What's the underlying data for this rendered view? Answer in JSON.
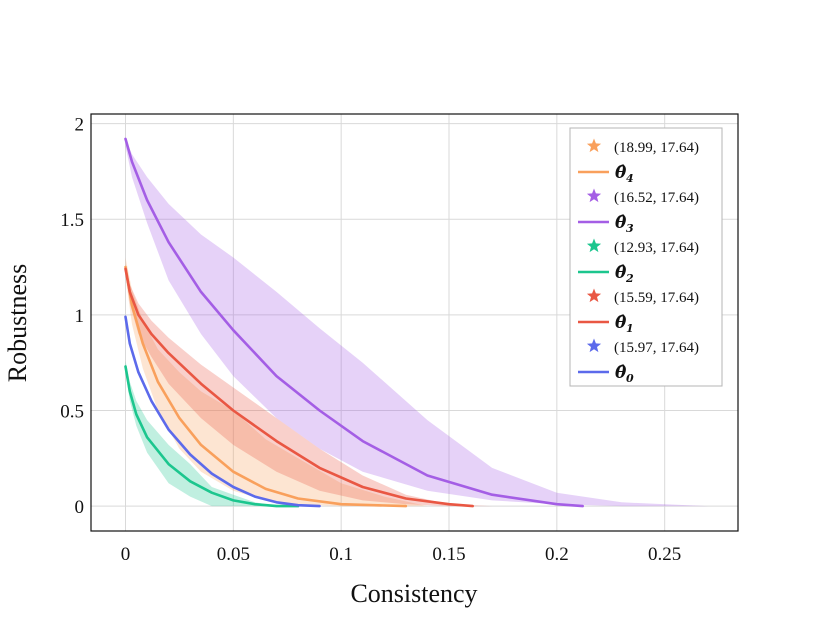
{
  "chart_data": {
    "type": "line",
    "title": "",
    "xlabel": "Consistency",
    "ylabel": "Robustness",
    "xlim": [
      -0.016,
      0.284
    ],
    "ylim": [
      -0.13,
      2.05
    ],
    "xticks": [
      0,
      0.05,
      0.1,
      0.15,
      0.2,
      0.25
    ],
    "xtick_labels": [
      "0",
      "0.05",
      "0.1",
      "0.15",
      "0.2",
      "0.25"
    ],
    "yticks": [
      0,
      0.5,
      1,
      1.5,
      2
    ],
    "ytick_labels": [
      "0",
      "0.5",
      "1",
      "1.5",
      "2"
    ],
    "grid": true,
    "legend_position": "top-right",
    "series": [
      {
        "name": "θ̂4",
        "sub": "4",
        "color": "#F9A05C",
        "star_label": "(18.99, 17.64)",
        "x": [
          0,
          0.003,
          0.008,
          0.015,
          0.025,
          0.035,
          0.05,
          0.065,
          0.08,
          0.1,
          0.13
        ],
        "y": [
          1.25,
          1.05,
          0.85,
          0.65,
          0.46,
          0.32,
          0.18,
          0.09,
          0.04,
          0.01,
          0.0
        ],
        "band_upper": [
          1.3,
          1.13,
          0.97,
          0.82,
          0.7,
          0.6,
          0.5,
          0.35,
          0.25,
          0.12,
          0.05,
          0.0
        ],
        "band_lower": [
          1.2,
          0.95,
          0.72,
          0.5,
          0.3,
          0.18,
          0.08,
          0.03,
          0.01,
          0.0,
          0.0,
          0.0
        ],
        "band_x": [
          0,
          0.003,
          0.008,
          0.015,
          0.025,
          0.035,
          0.05,
          0.065,
          0.08,
          0.1,
          0.12,
          0.14
        ]
      },
      {
        "name": "θ̂3",
        "sub": "3",
        "color": "#A45EE5",
        "star_label": "(16.52, 17.64)",
        "x": [
          0,
          0.003,
          0.01,
          0.02,
          0.035,
          0.05,
          0.07,
          0.09,
          0.11,
          0.14,
          0.17,
          0.2,
          0.212
        ],
        "y": [
          1.92,
          1.8,
          1.6,
          1.38,
          1.12,
          0.92,
          0.68,
          0.5,
          0.34,
          0.16,
          0.06,
          0.01,
          0.0
        ],
        "band_upper": [
          1.92,
          1.84,
          1.72,
          1.58,
          1.42,
          1.3,
          1.12,
          0.93,
          0.75,
          0.45,
          0.2,
          0.07,
          0.02,
          0.0
        ],
        "band_lower": [
          1.88,
          1.72,
          1.48,
          1.18,
          0.9,
          0.68,
          0.46,
          0.3,
          0.18,
          0.08,
          0.03,
          0.01,
          0.0,
          0.0
        ],
        "band_x": [
          0,
          0.003,
          0.01,
          0.02,
          0.035,
          0.05,
          0.07,
          0.09,
          0.11,
          0.14,
          0.17,
          0.2,
          0.23,
          0.27
        ]
      },
      {
        "name": "θ̂2",
        "sub": "2",
        "color": "#1CC68E",
        "star_label": "(12.93, 17.64)",
        "x": [
          0,
          0.002,
          0.005,
          0.01,
          0.02,
          0.03,
          0.04,
          0.05,
          0.06,
          0.07,
          0.08
        ],
        "y": [
          0.73,
          0.6,
          0.48,
          0.36,
          0.22,
          0.13,
          0.07,
          0.03,
          0.01,
          0.0,
          0.0
        ],
        "band_upper": [
          0.76,
          0.65,
          0.55,
          0.45,
          0.32,
          0.22,
          0.1,
          0.06,
          0.02,
          0.0,
          0.0
        ],
        "band_lower": [
          0.7,
          0.55,
          0.42,
          0.28,
          0.12,
          0.05,
          0.0,
          0.0,
          0.0,
          0.0,
          0.0
        ],
        "band_x": [
          0,
          0.002,
          0.005,
          0.01,
          0.02,
          0.03,
          0.04,
          0.05,
          0.06,
          0.07,
          0.08
        ]
      },
      {
        "name": "θ̂1",
        "sub": "1",
        "color": "#E95743",
        "star_label": "(15.59, 17.64)",
        "x": [
          0,
          0.002,
          0.006,
          0.012,
          0.02,
          0.035,
          0.05,
          0.07,
          0.09,
          0.11,
          0.13,
          0.15,
          0.161
        ],
        "y": [
          1.24,
          1.12,
          1.0,
          0.9,
          0.8,
          0.64,
          0.5,
          0.34,
          0.2,
          0.1,
          0.04,
          0.01,
          0.0
        ],
        "band_upper": [
          1.26,
          1.16,
          1.06,
          0.97,
          0.88,
          0.74,
          0.62,
          0.46,
          0.3,
          0.16,
          0.06,
          0.01,
          0.0
        ],
        "band_lower": [
          1.22,
          1.06,
          0.9,
          0.78,
          0.64,
          0.46,
          0.32,
          0.18,
          0.08,
          0.03,
          0.01,
          0.0,
          0.0
        ],
        "band_x": [
          0,
          0.002,
          0.006,
          0.012,
          0.02,
          0.035,
          0.05,
          0.07,
          0.09,
          0.11,
          0.13,
          0.15,
          0.17
        ]
      },
      {
        "name": "θ̂0",
        "sub": "0",
        "color": "#5C6AEB",
        "star_label": "(15.97, 17.64)",
        "x": [
          0,
          0.002,
          0.006,
          0.012,
          0.02,
          0.03,
          0.04,
          0.05,
          0.06,
          0.07,
          0.08,
          0.09
        ],
        "y": [
          0.99,
          0.85,
          0.7,
          0.55,
          0.4,
          0.27,
          0.17,
          0.1,
          0.05,
          0.02,
          0.005,
          0.0
        ],
        "band_upper": [],
        "band_lower": [],
        "band_x": []
      }
    ]
  }
}
